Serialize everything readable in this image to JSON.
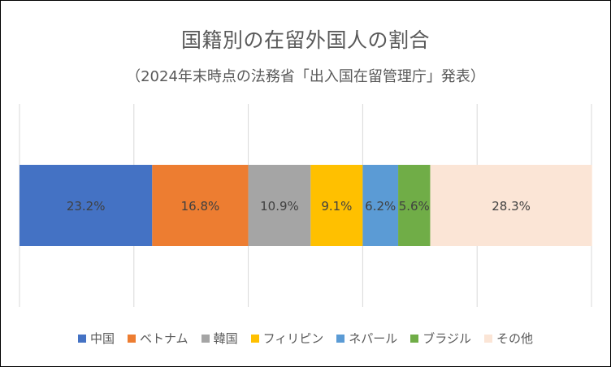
{
  "chart_data": {
    "type": "bar",
    "orientation": "horizontal-stacked-100",
    "title": "国籍別の在留外国人の割合",
    "subtitle": "（2024年末時点の法務省「出入国在留管理庁」発表）",
    "xlim": [
      0,
      100
    ],
    "grid": true,
    "legend_position": "bottom",
    "series": [
      {
        "name": "中国",
        "value": 23.2,
        "label": "23.2%",
        "color": "#4472C4"
      },
      {
        "name": "ベトナム",
        "value": 16.8,
        "label": "16.8%",
        "color": "#ED7D31"
      },
      {
        "name": "韓国",
        "value": 10.9,
        "label": "10.9%",
        "color": "#A5A5A5"
      },
      {
        "name": "フィリピン",
        "value": 9.1,
        "label": "9.1%",
        "color": "#FFC000"
      },
      {
        "name": "ネパール",
        "value": 6.2,
        "label": "6.2%",
        "color": "#5B9BD5"
      },
      {
        "name": "ブラジル",
        "value": 5.6,
        "label": "5.6%",
        "color": "#70AD47"
      },
      {
        "name": "その他",
        "value": 28.3,
        "label": "28.3%",
        "color": "#FBE5D6"
      }
    ]
  }
}
